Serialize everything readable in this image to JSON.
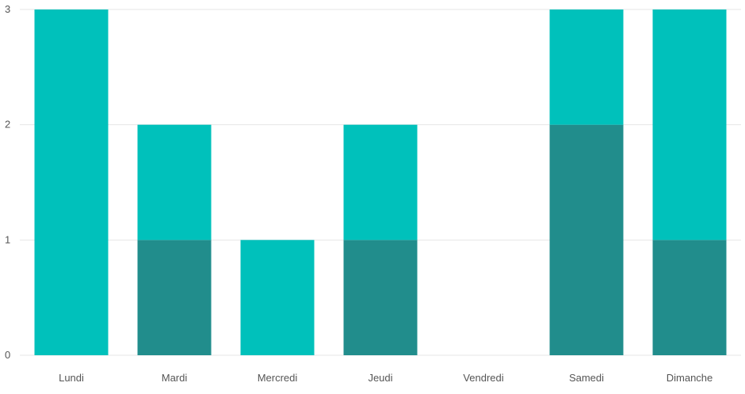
{
  "chart_data": {
    "type": "bar",
    "stacked": true,
    "categories": [
      "Lundi",
      "Mardi",
      "Mercredi",
      "Jeudi",
      "Vendredi",
      "Samedi",
      "Dimanche"
    ],
    "series": [
      {
        "values": [
          0,
          1,
          0,
          1,
          0,
          2,
          1
        ],
        "color": "#218d8c"
      },
      {
        "values": [
          3,
          1,
          1,
          1,
          0,
          1,
          2
        ],
        "color": "#00c1bb"
      }
    ],
    "yticks": [
      "0",
      "1",
      "2",
      "3"
    ],
    "ylim": [
      0,
      3
    ],
    "grid": true
  }
}
